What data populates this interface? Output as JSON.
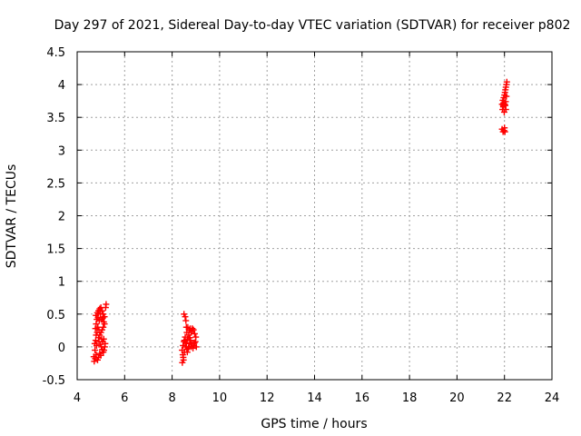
{
  "chart_data": {
    "type": "scatter",
    "title": "Day 297 of 2021, Sidereal Day-to-day VTEC variation (SDTVAR) for receiver p802",
    "xlabel": "GPS time / hours",
    "ylabel": "SDTVAR / TECUs",
    "xlim": [
      4,
      24
    ],
    "ylim": [
      -0.5,
      4.5
    ],
    "xticks": [
      4,
      6,
      8,
      10,
      12,
      14,
      16,
      18,
      20,
      22,
      24
    ],
    "yticks": [
      -0.5,
      0,
      0.5,
      1,
      1.5,
      2,
      2.5,
      3,
      3.5,
      4,
      4.5
    ],
    "ytick_labels": [
      "-0.5",
      "0",
      "0.5",
      "1",
      "1.5",
      "2",
      "2.5",
      "3",
      "3.5",
      "4",
      "4.5"
    ],
    "grid": true,
    "marker_color": "#ff0000",
    "series": [
      {
        "name": "SDTVAR",
        "points": [
          [
            4.72,
            -0.22
          ],
          [
            4.76,
            -0.18
          ],
          [
            4.8,
            -0.12
          ],
          [
            4.75,
            -0.05
          ],
          [
            4.82,
            0.02
          ],
          [
            4.78,
            0.1
          ],
          [
            4.8,
            0.18
          ],
          [
            4.84,
            0.22
          ],
          [
            4.77,
            0.28
          ],
          [
            4.8,
            0.35
          ],
          [
            4.83,
            0.42
          ],
          [
            4.79,
            0.48
          ],
          [
            4.85,
            0.52
          ],
          [
            4.9,
            0.55
          ],
          [
            4.95,
            0.58
          ],
          [
            5.0,
            0.6
          ],
          [
            5.05,
            0.55
          ],
          [
            5.1,
            0.5
          ],
          [
            5.08,
            0.44
          ],
          [
            5.12,
            0.38
          ],
          [
            5.15,
            0.35
          ],
          [
            5.1,
            0.3
          ],
          [
            5.05,
            0.26
          ],
          [
            5.0,
            0.22
          ],
          [
            4.95,
            0.18
          ],
          [
            4.9,
            0.14
          ],
          [
            4.92,
            0.08
          ],
          [
            4.98,
            0.04
          ],
          [
            5.02,
            0.0
          ],
          [
            5.06,
            -0.04
          ],
          [
            5.1,
            -0.08
          ],
          [
            5.13,
            -0.05
          ],
          [
            5.16,
            0.0
          ],
          [
            5.18,
            0.05
          ],
          [
            5.12,
            0.12
          ],
          [
            5.15,
            0.46
          ],
          [
            5.2,
            0.6
          ],
          [
            5.22,
            0.65
          ],
          [
            4.86,
            -0.2
          ],
          [
            4.9,
            -0.16
          ],
          [
            4.95,
            -0.1
          ],
          [
            5.0,
            -0.13
          ],
          [
            4.88,
            0.45
          ],
          [
            4.93,
            0.4
          ],
          [
            4.98,
            0.5
          ],
          [
            5.04,
            0.42
          ],
          [
            4.87,
            0.3
          ],
          [
            4.92,
            0.26
          ],
          [
            4.74,
            0.05
          ],
          [
            4.7,
            -0.15
          ],
          [
            5.03,
            0.12
          ],
          [
            5.07,
            0.08
          ],
          [
            8.5,
            0.5
          ],
          [
            8.55,
            0.46
          ],
          [
            8.58,
            0.4
          ],
          [
            8.6,
            0.3
          ],
          [
            8.62,
            0.22
          ],
          [
            8.55,
            0.15
          ],
          [
            8.5,
            0.08
          ],
          [
            8.46,
            0.02
          ],
          [
            8.42,
            -0.05
          ],
          [
            8.45,
            -0.12
          ],
          [
            8.48,
            -0.2
          ],
          [
            8.43,
            -0.24
          ],
          [
            8.52,
            -0.08
          ],
          [
            8.56,
            0.0
          ],
          [
            8.6,
            0.06
          ],
          [
            8.65,
            0.12
          ],
          [
            8.7,
            0.18
          ],
          [
            8.72,
            0.25
          ],
          [
            8.76,
            0.28
          ],
          [
            8.8,
            0.22
          ],
          [
            8.85,
            0.28
          ],
          [
            8.9,
            0.26
          ],
          [
            8.95,
            0.2
          ],
          [
            9.0,
            0.15
          ],
          [
            8.98,
            0.08
          ],
          [
            8.92,
            0.02
          ],
          [
            8.88,
            -0.02
          ],
          [
            8.82,
            0.04
          ],
          [
            8.78,
            0.1
          ],
          [
            8.74,
            0.05
          ],
          [
            8.68,
            -0.02
          ],
          [
            8.64,
            -0.08
          ],
          [
            8.7,
            0.0
          ],
          [
            8.75,
            0.14
          ],
          [
            8.8,
            0.0
          ],
          [
            8.94,
            0.06
          ],
          [
            9.02,
            0.0
          ],
          [
            8.66,
            0.3
          ],
          [
            8.58,
            0.06
          ],
          [
            8.52,
            0.1
          ],
          [
            8.47,
            -0.16
          ],
          [
            8.62,
            -0.04
          ],
          [
            21.9,
            3.32
          ],
          [
            21.94,
            3.28
          ],
          [
            21.98,
            3.3
          ],
          [
            22.0,
            3.34
          ],
          [
            22.02,
            3.28
          ],
          [
            21.92,
            3.62
          ],
          [
            21.95,
            3.66
          ],
          [
            21.9,
            3.7
          ],
          [
            21.96,
            3.72
          ],
          [
            21.93,
            3.76
          ],
          [
            21.97,
            3.8
          ],
          [
            22.0,
            3.84
          ],
          [
            22.02,
            3.88
          ],
          [
            22.04,
            3.92
          ],
          [
            22.06,
            3.96
          ],
          [
            22.08,
            4.0
          ],
          [
            22.1,
            4.04
          ],
          [
            22.03,
            3.68
          ],
          [
            22.06,
            3.62
          ],
          [
            21.99,
            3.58
          ],
          [
            22.05,
            3.74
          ],
          [
            22.08,
            3.82
          ],
          [
            21.95,
            3.68
          ],
          [
            22.01,
            3.7
          ]
        ]
      }
    ]
  }
}
